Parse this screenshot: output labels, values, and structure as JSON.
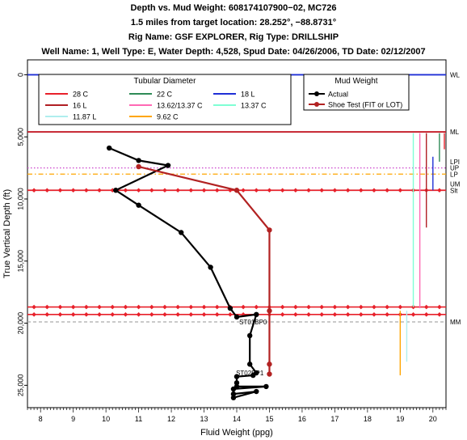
{
  "titles": [
    "Depth vs. Mud Weight: 608174107900−02, MC726",
    "1.5 miles from target location: 28.252°, −88.8731°",
    "Rig Name: GSF EXPLORER, Rig Type: DRILLSHIP",
    "Well Name: 1, Well Type: E, Water Depth: 4,528, Spud Date: 04/26/2006, TD Date: 02/12/2007"
  ],
  "chart_data": {
    "type": "line",
    "xlabel": "Fluid Weight (ppg)",
    "ylabel": "True Vertical Depth (ft)",
    "xlim": [
      7.6,
      20.4
    ],
    "ylim": [
      26800,
      -1200
    ],
    "xticks": [
      8,
      9,
      10,
      11,
      12,
      13,
      14,
      15,
      16,
      17,
      18,
      19,
      20
    ],
    "yticks": [
      0,
      5000,
      10000,
      15000,
      20000,
      25000
    ],
    "ytick_labels": [
      "0",
      "5,000",
      "10,000",
      "15,000",
      "20,000",
      "25,000"
    ],
    "grid": false,
    "legends": {
      "tubular": {
        "title": "Tubular Diameter",
        "entries": [
          {
            "label": "28 C",
            "color": "#e8202a"
          },
          {
            "label": "22 C",
            "color": "#2e8b57"
          },
          {
            "label": "18 L",
            "color": "#1f2fd6"
          },
          {
            "label": "16 L",
            "color": "#b01e23"
          },
          {
            "label": "13.62/13.37 C",
            "color": "#ff69b4"
          },
          {
            "label": "13.37 C",
            "color": "#7fffd4"
          },
          {
            "label": "11.87 L",
            "color": "#afeeee"
          },
          {
            "label": "9.62 C",
            "color": "#ffa500"
          }
        ]
      },
      "mud": {
        "title": "Mud Weight",
        "entries": [
          {
            "label": "Actual",
            "color": "#000000"
          },
          {
            "label": "Shoe Test (FIT or LOT)",
            "color": "#b22222"
          }
        ]
      }
    },
    "series": [
      {
        "name": "Actual",
        "color": "#000000",
        "points": [
          [
            10.1,
            5900
          ],
          [
            11.0,
            6900
          ],
          [
            11.9,
            7300
          ],
          [
            10.3,
            9300
          ],
          [
            11.0,
            10500
          ],
          [
            12.3,
            12700
          ],
          [
            13.2,
            15500
          ],
          [
            13.8,
            18800
          ],
          [
            14.0,
            19500
          ],
          [
            14.6,
            19300
          ],
          [
            14.4,
            21000
          ],
          [
            14.4,
            23300
          ],
          [
            14.6,
            24000
          ],
          [
            14.5,
            24200
          ],
          [
            14.0,
            24300
          ],
          [
            14.0,
            24800
          ],
          [
            14.0,
            25100
          ],
          [
            14.9,
            25100
          ],
          [
            13.9,
            25300
          ],
          [
            13.9,
            25700
          ],
          [
            14.6,
            25500
          ],
          [
            13.9,
            26000
          ]
        ]
      },
      {
        "name": "Shoe Test (FIT or LOT)",
        "color": "#b22222",
        "points": [
          [
            11.0,
            7400
          ],
          [
            14.0,
            9300
          ],
          [
            15.0,
            12500
          ],
          [
            15.0,
            19000
          ],
          [
            15.0,
            23300
          ],
          [
            15.0,
            24100
          ]
        ]
      }
    ],
    "casing_lines": [
      {
        "color": "#1f2fd6",
        "x": 20.0,
        "top": 6600,
        "bottom": 9300
      },
      {
        "color": "#2e8b57",
        "x": 20.2,
        "top": 4700,
        "bottom": 7000
      },
      {
        "color": "#e8202a",
        "x": 20.35,
        "top": 4700,
        "bottom": 6000
      },
      {
        "color": "#b01e23",
        "x": 19.8,
        "top": 4700,
        "bottom": 12300
      },
      {
        "color": "#ff69b4",
        "x": 19.6,
        "top": 4700,
        "bottom": 18800
      },
      {
        "color": "#7fffd4",
        "x": 19.4,
        "top": 4700,
        "bottom": 18700
      },
      {
        "color": "#afeeee",
        "x": 19.2,
        "top": 19000,
        "bottom": 23100
      },
      {
        "color": "#ffa500",
        "x": 19.0,
        "top": 19000,
        "bottom": 24200
      }
    ],
    "horizontal_lines": [
      {
        "label": "WL",
        "depth": 0,
        "color": "#1f2fd6",
        "style": "solid"
      },
      {
        "label": "ML",
        "depth": 4600,
        "color": "#c41e2a",
        "style": "solid"
      },
      {
        "label": "LPI",
        "depth": 7000,
        "color": "#c41e2a",
        "style": "none"
      },
      {
        "label": "UP",
        "depth": 7500,
        "color": "#cc44cc",
        "style": "dotted"
      },
      {
        "label": "LP",
        "depth": 8000,
        "color": "#ffa500",
        "style": "dashdot"
      },
      {
        "label": "UM",
        "depth": 8800,
        "color": "#c41e2a",
        "style": "none"
      },
      {
        "label": "Slt",
        "depth": 9300,
        "color": "#c41e2a",
        "style": "solid"
      },
      {
        "label": "MM",
        "depth": 19900,
        "color": "#aaaaaa",
        "style": "dashed"
      }
    ],
    "diamond_lines": [
      {
        "depth": 9300,
        "color": "#e8202a"
      },
      {
        "depth": 18700,
        "color": "#e8202a"
      },
      {
        "depth": 19300,
        "color": "#e8202a"
      }
    ],
    "annotations": [
      {
        "text": "ST01BP0",
        "x": 14.5,
        "depth": 20100
      },
      {
        "text": "ST02BP1",
        "x": 14.4,
        "depth": 24200
      }
    ]
  }
}
